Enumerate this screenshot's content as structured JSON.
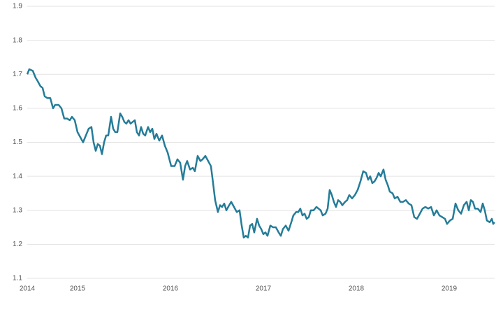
{
  "chart_data": {
    "type": "line",
    "x": [
      2014.459,
      2014.481,
      2014.519,
      2014.549,
      2014.571,
      2014.601,
      2014.624,
      2014.647,
      2014.677,
      2014.707,
      2014.737,
      2014.759,
      2014.797,
      2014.827,
      2014.857,
      2014.887,
      2014.917,
      2014.94,
      2014.97,
      2015.0,
      2015.03,
      2015.06,
      2015.09,
      2015.12,
      2015.15,
      2015.173,
      2015.196,
      2015.218,
      2015.241,
      2015.263,
      2015.286,
      2015.308,
      2015.331,
      2015.361,
      2015.384,
      2015.406,
      2015.429,
      2015.459,
      2015.481,
      2015.504,
      2015.526,
      2015.549,
      2015.571,
      2015.594,
      2015.617,
      2015.639,
      2015.662,
      2015.684,
      2015.707,
      2015.729,
      2015.759,
      2015.782,
      2015.805,
      2015.827,
      2015.85,
      2015.88,
      2015.91,
      2015.94,
      2015.97,
      2016.008,
      2016.045,
      2016.075,
      2016.105,
      2016.135,
      2016.158,
      2016.18,
      2016.211,
      2016.241,
      2016.263,
      2016.293,
      2016.323,
      2016.346,
      2016.376,
      2016.406,
      2016.436,
      2016.459,
      2016.481,
      2016.511,
      2016.534,
      2016.556,
      2016.579,
      2016.602,
      2016.632,
      2016.654,
      2016.684,
      2016.714,
      2016.744,
      2016.767,
      2016.789,
      2016.812,
      2016.835,
      2016.857,
      2016.88,
      2016.902,
      2016.932,
      2016.955,
      2016.977,
      2017.0,
      2017.023,
      2017.045,
      2017.075,
      2017.105,
      2017.135,
      2017.165,
      2017.188,
      2017.211,
      2017.241,
      2017.271,
      2017.301,
      2017.323,
      2017.353,
      2017.376,
      2017.398,
      2017.421,
      2017.444,
      2017.466,
      2017.489,
      2017.511,
      2017.541,
      2017.571,
      2017.594,
      2017.617,
      2017.639,
      2017.669,
      2017.692,
      2017.714,
      2017.737,
      2017.759,
      2017.782,
      2017.805,
      2017.827,
      2017.85,
      2017.88,
      2017.902,
      2017.925,
      2017.955,
      2017.985,
      2018.015,
      2018.045,
      2018.075,
      2018.105,
      2018.128,
      2018.15,
      2018.173,
      2018.196,
      2018.218,
      2018.241,
      2018.263,
      2018.293,
      2018.316,
      2018.338,
      2018.361,
      2018.391,
      2018.414,
      2018.444,
      2018.474,
      2018.504,
      2018.534,
      2018.564,
      2018.594,
      2018.624,
      2018.654,
      2018.684,
      2018.714,
      2018.744,
      2018.774,
      2018.805,
      2018.835,
      2018.865,
      2018.895,
      2018.925,
      2018.955,
      2018.977,
      2019.008,
      2019.038,
      2019.068,
      2019.098,
      2019.128,
      2019.158,
      2019.188,
      2019.211,
      2019.233,
      2019.256,
      2019.278,
      2019.308,
      2019.338,
      2019.361,
      2019.383,
      2019.406,
      2019.436,
      2019.459,
      2019.474,
      2019.489
    ],
    "values": [
      1.7,
      1.715,
      1.71,
      1.69,
      1.68,
      1.665,
      1.66,
      1.635,
      1.63,
      1.63,
      1.6,
      1.61,
      1.61,
      1.6,
      1.57,
      1.57,
      1.565,
      1.575,
      1.565,
      1.53,
      1.515,
      1.5,
      1.52,
      1.54,
      1.545,
      1.5,
      1.475,
      1.495,
      1.49,
      1.465,
      1.5,
      1.52,
      1.52,
      1.575,
      1.54,
      1.53,
      1.53,
      1.585,
      1.575,
      1.56,
      1.555,
      1.565,
      1.555,
      1.56,
      1.565,
      1.53,
      1.52,
      1.545,
      1.525,
      1.52,
      1.545,
      1.53,
      1.54,
      1.51,
      1.525,
      1.505,
      1.52,
      1.49,
      1.47,
      1.43,
      1.43,
      1.45,
      1.44,
      1.39,
      1.43,
      1.445,
      1.42,
      1.425,
      1.415,
      1.46,
      1.445,
      1.45,
      1.46,
      1.445,
      1.43,
      1.38,
      1.33,
      1.295,
      1.315,
      1.31,
      1.32,
      1.3,
      1.315,
      1.325,
      1.31,
      1.295,
      1.3,
      1.255,
      1.22,
      1.225,
      1.22,
      1.255,
      1.26,
      1.235,
      1.275,
      1.255,
      1.245,
      1.23,
      1.235,
      1.225,
      1.255,
      1.25,
      1.25,
      1.235,
      1.225,
      1.245,
      1.255,
      1.24,
      1.265,
      1.285,
      1.295,
      1.295,
      1.305,
      1.285,
      1.29,
      1.275,
      1.28,
      1.3,
      1.3,
      1.31,
      1.305,
      1.3,
      1.285,
      1.29,
      1.305,
      1.36,
      1.345,
      1.325,
      1.31,
      1.33,
      1.325,
      1.315,
      1.325,
      1.33,
      1.345,
      1.335,
      1.345,
      1.36,
      1.385,
      1.415,
      1.41,
      1.39,
      1.4,
      1.38,
      1.385,
      1.395,
      1.41,
      1.4,
      1.42,
      1.39,
      1.375,
      1.355,
      1.35,
      1.335,
      1.34,
      1.325,
      1.325,
      1.33,
      1.32,
      1.315,
      1.28,
      1.275,
      1.29,
      1.305,
      1.31,
      1.305,
      1.31,
      1.285,
      1.3,
      1.285,
      1.28,
      1.275,
      1.26,
      1.27,
      1.275,
      1.32,
      1.3,
      1.29,
      1.315,
      1.325,
      1.3,
      1.33,
      1.325,
      1.305,
      1.305,
      1.295,
      1.32,
      1.3,
      1.27,
      1.265,
      1.275,
      1.26,
      1.265
    ],
    "color": "#247c98",
    "xlim": [
      2014.459,
      2019.489
    ],
    "xticks": [
      {
        "value": 2014.459,
        "label": "2014"
      },
      2015,
      2016,
      2017,
      2018,
      2019
    ],
    "ylim": [
      1.1,
      1.9
    ],
    "yticks": [
      1.1,
      1.2,
      1.3,
      1.4,
      1.5,
      1.6,
      1.7,
      1.8,
      1.9
    ],
    "grid": true
  }
}
